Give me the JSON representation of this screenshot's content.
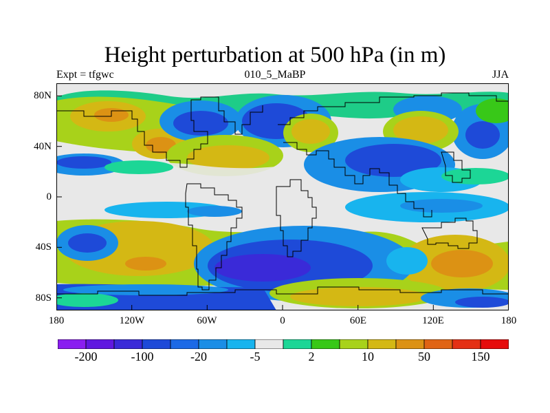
{
  "title": "Height perturbation at 500 hPa (in m)",
  "left_string": "Expt = tfgwc",
  "center_string": "010_5_MaBP",
  "right_string": "JJA",
  "lat_ticks": [
    "80N",
    "40N",
    "0",
    "40S",
    "80S"
  ],
  "lon_ticks": [
    "180",
    "120W",
    "60W",
    "0",
    "60E",
    "120E",
    "180"
  ],
  "colorbar": {
    "colors": [
      "#8a1ef0",
      "#6018e0",
      "#3a2ad8",
      "#1e4ad8",
      "#1c6ae6",
      "#1a8ee6",
      "#18b4ee",
      "#e8e8e8",
      "#1cd696",
      "#38c818",
      "#a8d21a",
      "#d4b814",
      "#dc9214",
      "#e06414",
      "#e43014",
      "#e60c0c"
    ],
    "labels": [
      "-200",
      "-100",
      "-20",
      "-5",
      "2",
      "10",
      "50",
      "150"
    ]
  }
}
